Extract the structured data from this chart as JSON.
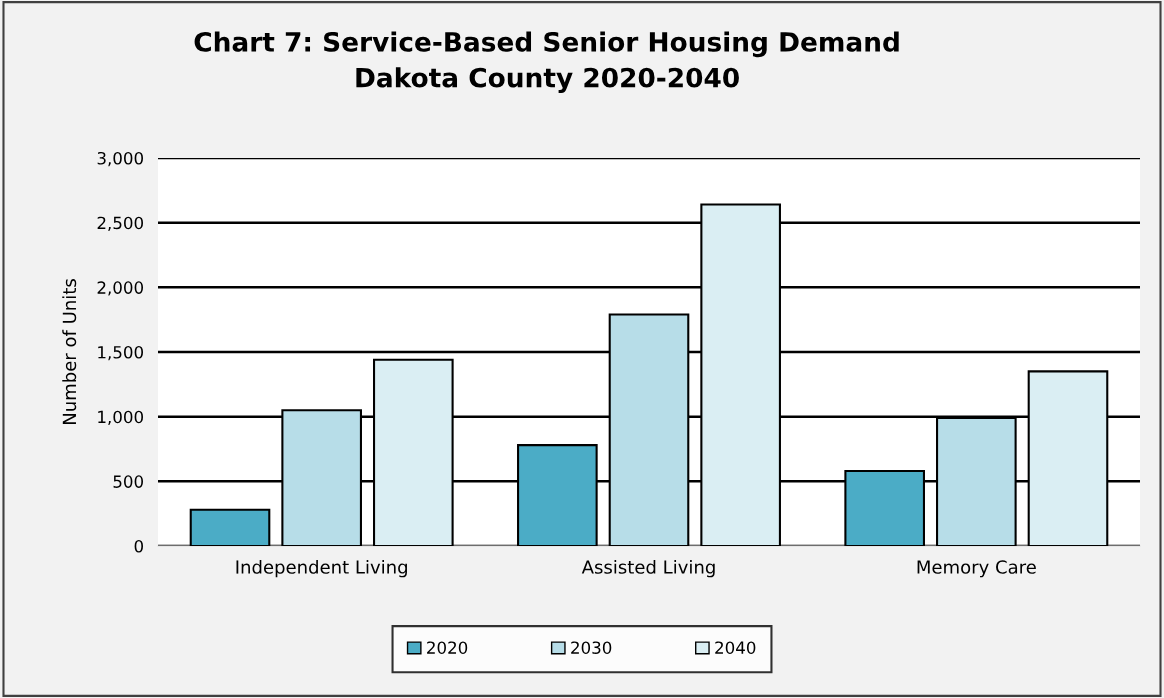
{
  "chart_data": {
    "type": "bar",
    "title": "Chart 7: Service-Based Senior Housing Demand\nDakota County 2020-2040",
    "ylabel": "Number of Units",
    "categories": [
      "Independent Living",
      "Assisted Living",
      "Memory Care"
    ],
    "series": [
      {
        "name": "2020",
        "color": "#4bacc6",
        "values": [
          280,
          780,
          580
        ]
      },
      {
        "name": "2030",
        "color": "#b7dde8",
        "values": [
          1050,
          1790,
          990
        ]
      },
      {
        "name": "2040",
        "color": "#daeef3",
        "values": [
          1440,
          2640,
          1350
        ]
      }
    ],
    "ylim": [
      0,
      3000
    ],
    "yticks": [
      {
        "value": 0,
        "label": "0"
      },
      {
        "value": 500,
        "label": "500"
      },
      {
        "value": 1000,
        "label": "1,000"
      },
      {
        "value": 1500,
        "label": "1,500"
      },
      {
        "value": 2000,
        "label": "2,000"
      },
      {
        "value": 2500,
        "label": "2,500"
      },
      {
        "value": 3000,
        "label": "3,000"
      }
    ],
    "grid": "y",
    "legend": "bottom"
  }
}
